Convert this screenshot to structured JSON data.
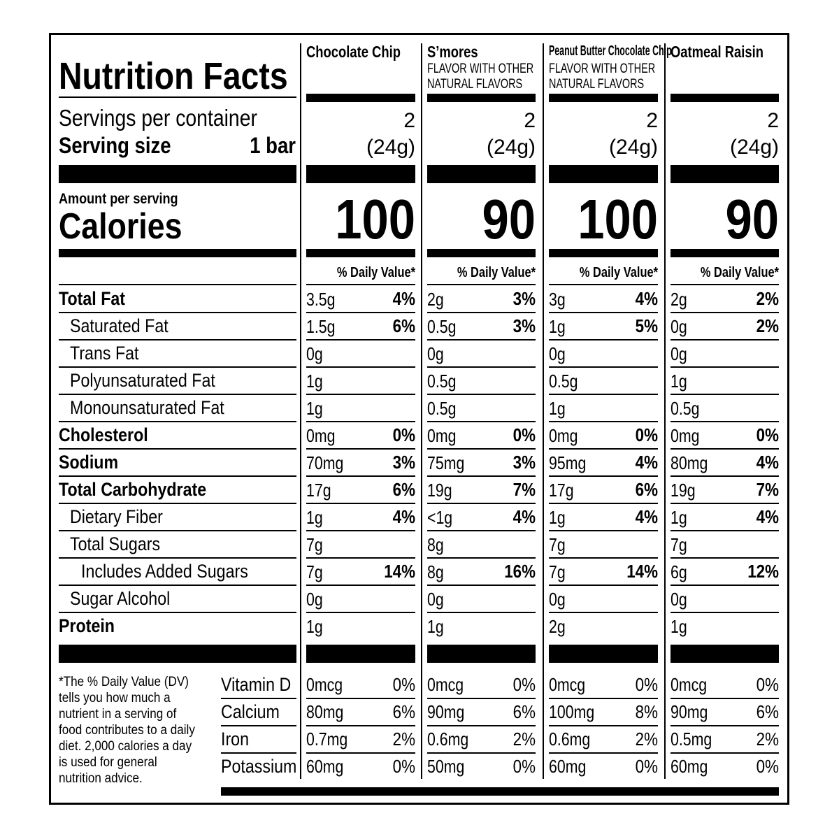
{
  "label_title": "Nutrition Facts",
  "servings_label": "Servings per container",
  "serving_size_label": "Serving size",
  "serving_size_value": "1 bar",
  "amount_per_serving": "Amount per serving",
  "calories_label": "Calories",
  "dv_header": "% Daily Value*",
  "nutrients": [
    {
      "name": "Total Fat",
      "bold": true,
      "indent": 0
    },
    {
      "name": "Saturated Fat",
      "bold": false,
      "indent": 1
    },
    {
      "name": "Trans Fat",
      "bold": false,
      "indent": 1
    },
    {
      "name": "Polyunsaturated Fat",
      "bold": false,
      "indent": 1
    },
    {
      "name": "Monounsaturated Fat",
      "bold": false,
      "indent": 1
    },
    {
      "name": "Cholesterol",
      "bold": true,
      "indent": 0
    },
    {
      "name": "Sodium",
      "bold": true,
      "indent": 0
    },
    {
      "name": "Total Carbohydrate",
      "bold": true,
      "indent": 0
    },
    {
      "name": "Dietary Fiber",
      "bold": false,
      "indent": 1
    },
    {
      "name": "Total Sugars",
      "bold": false,
      "indent": 1
    },
    {
      "name": "Includes Added Sugars",
      "bold": false,
      "indent": 2
    },
    {
      "name": "Sugar Alcohol",
      "bold": false,
      "indent": 1
    },
    {
      "name": "Protein",
      "bold": true,
      "indent": 0
    }
  ],
  "footnote": "*The % Daily Value (DV) tells you how much a nutrient in a serving of food contributes to a daily diet. 2,000 calories a day is used for general nutrition advice.",
  "vitamins": [
    "Vitamin D",
    "Calcium",
    "Iron",
    "Potassium"
  ],
  "flavors": [
    {
      "name": "Chocolate Chip",
      "subtitle": "",
      "servings": "2",
      "serving_weight": "(24g)",
      "calories": "100",
      "amounts": [
        "3.5g",
        "1.5g",
        "0g",
        "1g",
        "1g",
        "0mg",
        "70mg",
        "17g",
        "1g",
        "7g",
        "7g",
        "0g",
        "1g"
      ],
      "dvs": [
        "4%",
        "6%",
        "",
        "",
        "",
        "0%",
        "3%",
        "6%",
        "4%",
        "",
        "14%",
        "",
        ""
      ],
      "vit_amounts": [
        "0mcg",
        "80mg",
        "0.7mg",
        "60mg"
      ],
      "vit_dvs": [
        "0%",
        "6%",
        "2%",
        "0%"
      ]
    },
    {
      "name": "S’mores",
      "subtitle": "FLAVOR WITH OTHER NATURAL FLAVORS",
      "servings": "2",
      "serving_weight": "(24g)",
      "calories": "90",
      "amounts": [
        "2g",
        "0.5g",
        "0g",
        "0.5g",
        "0.5g",
        "0mg",
        "75mg",
        "19g",
        "<1g",
        "8g",
        "8g",
        "0g",
        "1g"
      ],
      "dvs": [
        "3%",
        "3%",
        "",
        "",
        "",
        "0%",
        "3%",
        "7%",
        "4%",
        "",
        "16%",
        "",
        ""
      ],
      "vit_amounts": [
        "0mcg",
        "90mg",
        "0.6mg",
        "50mg"
      ],
      "vit_dvs": [
        "0%",
        "6%",
        "2%",
        "0%"
      ]
    },
    {
      "name": "Peanut Butter Chocolate Chip",
      "subtitle": "FLAVOR WITH OTHER NATURAL FLAVORS",
      "servings": "2",
      "serving_weight": "(24g)",
      "calories": "100",
      "amounts": [
        "3g",
        "1g",
        "0g",
        "0.5g",
        "1g",
        "0mg",
        "95mg",
        "17g",
        "1g",
        "7g",
        "7g",
        "0g",
        "2g"
      ],
      "dvs": [
        "4%",
        "5%",
        "",
        "",
        "",
        "0%",
        "4%",
        "6%",
        "4%",
        "",
        "14%",
        "",
        ""
      ],
      "vit_amounts": [
        "0mcg",
        "100mg",
        "0.6mg",
        "60mg"
      ],
      "vit_dvs": [
        "0%",
        "8%",
        "2%",
        "0%"
      ]
    },
    {
      "name": "Oatmeal Raisin",
      "subtitle": "",
      "servings": "2",
      "serving_weight": "(24g)",
      "calories": "90",
      "amounts": [
        "2g",
        "0g",
        "0g",
        "1g",
        "0.5g",
        "0mg",
        "80mg",
        "19g",
        "1g",
        "7g",
        "6g",
        "0g",
        "1g"
      ],
      "dvs": [
        "2%",
        "2%",
        "",
        "",
        "",
        "0%",
        "4%",
        "7%",
        "4%",
        "",
        "12%",
        "",
        ""
      ],
      "vit_amounts": [
        "0mcg",
        "90mg",
        "0.5mg",
        "60mg"
      ],
      "vit_dvs": [
        "0%",
        "6%",
        "2%",
        "0%"
      ]
    }
  ]
}
